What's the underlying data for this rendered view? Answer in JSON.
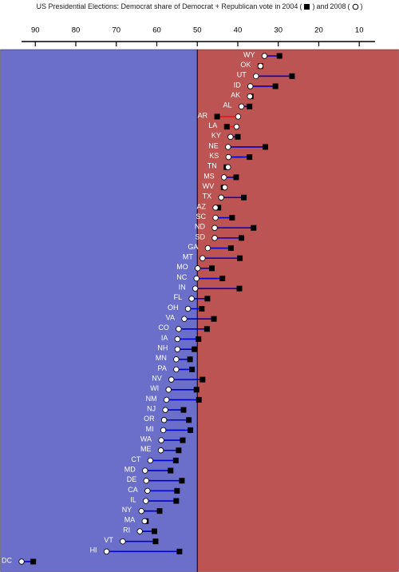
{
  "chart_data": {
    "type": "dumbbell",
    "title": "US Presidential Elections: Democrat share of Democrat + Republican  vote in",
    "legend_open": "(",
    "legend_close": ")",
    "title_joiner": "and",
    "categories": [
      "WY",
      "OK",
      "UT",
      "ID",
      "AK",
      "AL",
      "AR",
      "LA",
      "KY",
      "NE",
      "KS",
      "TN",
      "MS",
      "WV",
      "TX",
      "AZ",
      "SC",
      "ND",
      "SD",
      "GA",
      "MT",
      "MO",
      "NC",
      "IN",
      "FL",
      "OH",
      "VA",
      "CO",
      "IA",
      "NH",
      "MN",
      "PA",
      "NV",
      "WI",
      "NM",
      "NJ",
      "OR",
      "MI",
      "WA",
      "ME",
      "CT",
      "MD",
      "DE",
      "CA",
      "IL",
      "NY",
      "MA",
      "RI",
      "VT",
      "HI",
      "DC"
    ],
    "series": [
      {
        "name": "2004",
        "marker": "square",
        "color": "#000000",
        "values": [
          29.7,
          34.4,
          26.6,
          30.7,
          36.8,
          37.1,
          45.1,
          42.7,
          40.0,
          33.2,
          37.1,
          42.8,
          40.4,
          43.5,
          38.5,
          44.8,
          41.4,
          36.1,
          39.1,
          41.7,
          39.5,
          46.4,
          43.8,
          39.6,
          47.5,
          48.9,
          45.9,
          47.6,
          49.7,
          50.7,
          51.8,
          51.3,
          48.7,
          50.2,
          49.6,
          53.4,
          52.1,
          51.7,
          53.6,
          54.6,
          55.3,
          56.6,
          53.8,
          55.0,
          55.2,
          59.3,
          62.7,
          60.6,
          60.3,
          54.4,
          90.5
        ]
      },
      {
        "name": "2008",
        "marker": "circle",
        "color": "#ffffff",
        "values": [
          33.4,
          34.4,
          35.5,
          36.9,
          37.0,
          39.1,
          39.9,
          40.3,
          41.8,
          42.4,
          42.3,
          42.4,
          43.4,
          43.2,
          44.1,
          45.5,
          45.5,
          45.7,
          45.7,
          47.4,
          48.7,
          49.9,
          50.2,
          50.5,
          51.4,
          52.3,
          53.2,
          54.6,
          54.9,
          54.9,
          55.2,
          55.2,
          56.4,
          57.1,
          57.6,
          57.9,
          58.2,
          58.4,
          58.9,
          59.0,
          61.6,
          62.9,
          62.6,
          62.3,
          62.7,
          63.8,
          63.0,
          64.2,
          68.4,
          72.4,
          93.4
        ]
      }
    ],
    "increase_color": "#0000cc",
    "decrease_color": "#ee1111",
    "midpoint": 50,
    "left_color": "#6b6fc9",
    "right_color": "#bb5452",
    "xlim": [
      93.4,
      6.1
    ],
    "xticks": [
      90,
      80,
      70,
      60,
      50,
      40,
      30,
      20,
      10
    ]
  }
}
